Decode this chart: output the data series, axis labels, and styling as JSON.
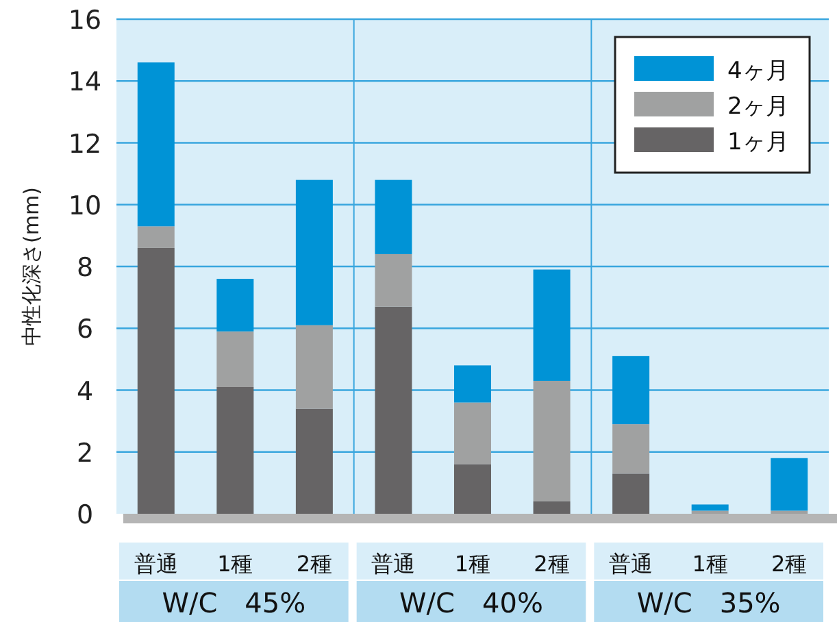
{
  "chart_data": {
    "type": "bar",
    "stacked": true,
    "ylabel": "中性化深さ(mm)",
    "categories": [
      "普通",
      "1種",
      "2種",
      "普通",
      "1種",
      "2種",
      "普通",
      "1種",
      "2種"
    ],
    "series": [
      {
        "name": "1ヶ月",
        "color": "#666465",
        "values": [
          8.6,
          4.1,
          3.4,
          6.7,
          1.6,
          0.4,
          1.3,
          0,
          0
        ]
      },
      {
        "name": "2ヶ月",
        "color": "#a0a1a1",
        "values": [
          0.7,
          1.8,
          2.7,
          1.7,
          2.0,
          3.9,
          1.6,
          0.1,
          0.1
        ]
      },
      {
        "name": "4ヶ月",
        "color": "#0093d6",
        "values": [
          5.3,
          1.7,
          4.7,
          2.4,
          1.2,
          3.6,
          2.2,
          0.2,
          1.7
        ]
      }
    ],
    "annotations": [
      "W/C　45%",
      "W/C　40%",
      "W/C　35%"
    ],
    "ylim": [
      0,
      16
    ],
    "yticks": [
      0,
      2,
      4,
      6,
      8,
      10,
      12,
      14,
      16
    ],
    "grid": "y",
    "legend": "top right"
  }
}
